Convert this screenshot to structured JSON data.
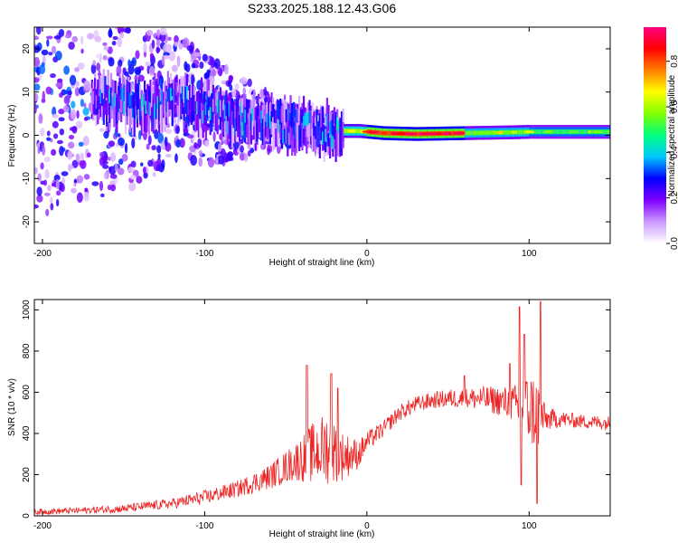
{
  "figure": {
    "title": "S233.2025.188.12.43.G06"
  },
  "chart_data": [
    {
      "type": "heatmap",
      "xlabel": "Height of straight line (km)",
      "ylabel": "Frequency (Hz)",
      "xlim": [
        -205,
        150
      ],
      "ylim": [
        -25,
        25
      ],
      "x_ticks": [
        -200,
        -100,
        0,
        100
      ],
      "y_ticks": [
        -20,
        -10,
        0,
        10,
        20
      ],
      "colorbar": {
        "label": "Normalized spectral amplitude",
        "range": [
          0.0,
          0.95
        ],
        "ticks": [
          "0.0",
          "0.2",
          "0.4",
          "0.6",
          "0.8"
        ],
        "tick_values": [
          0.0,
          0.2,
          0.4,
          0.6,
          0.8
        ],
        "colormap": [
          "#ffffff",
          "#cc99ff",
          "#7f00ff",
          "#0000ff",
          "#00c8ff",
          "#00ff80",
          "#80ff00",
          "#ffff00",
          "#ff8000",
          "#ff0000",
          "#ff0080"
        ]
      },
      "ridge": [
        {
          "x": -165,
          "f": 8
        },
        {
          "x": -140,
          "f": 7
        },
        {
          "x": -120,
          "f": 8
        },
        {
          "x": -100,
          "f": 6
        },
        {
          "x": -80,
          "f": 4
        },
        {
          "x": -60,
          "f": 3
        },
        {
          "x": -40,
          "f": 2
        },
        {
          "x": -20,
          "f": 1
        },
        {
          "x": -5,
          "f": 1
        },
        {
          "x": 10,
          "f": 0.5
        },
        {
          "x": 30,
          "f": 0.3
        },
        {
          "x": 60,
          "f": 0.5
        },
        {
          "x": 90,
          "f": 0.7
        },
        {
          "x": 100,
          "f": 0.8
        },
        {
          "x": 150,
          "f": 0.8
        }
      ],
      "peak_amplitude_regions": [
        {
          "x_from": -20,
          "x_to": 0,
          "level": 0.6
        },
        {
          "x_from": 0,
          "x_to": 60,
          "level": 0.8
        },
        {
          "x_from": 60,
          "x_to": 100,
          "level": 0.55
        },
        {
          "x_from": 100,
          "x_to": 150,
          "level": 0.5
        }
      ]
    },
    {
      "type": "line",
      "xlabel": "Height of straight line (km)",
      "ylabel": "SNR (10 * v/v)",
      "xlim": [
        -205,
        150
      ],
      "ylim": [
        0,
        1050
      ],
      "x_ticks": [
        -200,
        -100,
        0,
        100
      ],
      "y_ticks": [
        0,
        200,
        400,
        600,
        800,
        1000
      ],
      "color": "#ee2222",
      "envelope": {
        "x": [
          -205,
          -180,
          -150,
          -120,
          -100,
          -80,
          -60,
          -45,
          -35,
          -25,
          -15,
          -5,
          0,
          10,
          20,
          30,
          40,
          50,
          60,
          70,
          80,
          90,
          95,
          100,
          105,
          110,
          120,
          130,
          140,
          150
        ],
        "mean": [
          20,
          25,
          35,
          60,
          90,
          130,
          190,
          260,
          300,
          330,
          290,
          300,
          360,
          420,
          500,
          540,
          560,
          570,
          570,
          570,
          560,
          540,
          520,
          520,
          500,
          470,
          470,
          460,
          455,
          450
        ],
        "spread": [
          15,
          15,
          20,
          25,
          35,
          40,
          60,
          90,
          140,
          180,
          120,
          70,
          50,
          40,
          40,
          40,
          40,
          45,
          50,
          60,
          70,
          90,
          150,
          180,
          200,
          60,
          40,
          35,
          35,
          35
        ]
      },
      "spikes": [
        {
          "x": -37,
          "y": 730
        },
        {
          "x": -22,
          "y": 690
        },
        {
          "x": -18,
          "y": 620
        },
        {
          "x": 60,
          "y": 680
        },
        {
          "x": 88,
          "y": 740
        },
        {
          "x": 94,
          "y": 1015
        },
        {
          "x": 97,
          "y": 880
        },
        {
          "x": 107,
          "y": 1040
        },
        {
          "x": 105,
          "y": 60
        },
        {
          "x": 95,
          "y": 150
        }
      ]
    }
  ]
}
